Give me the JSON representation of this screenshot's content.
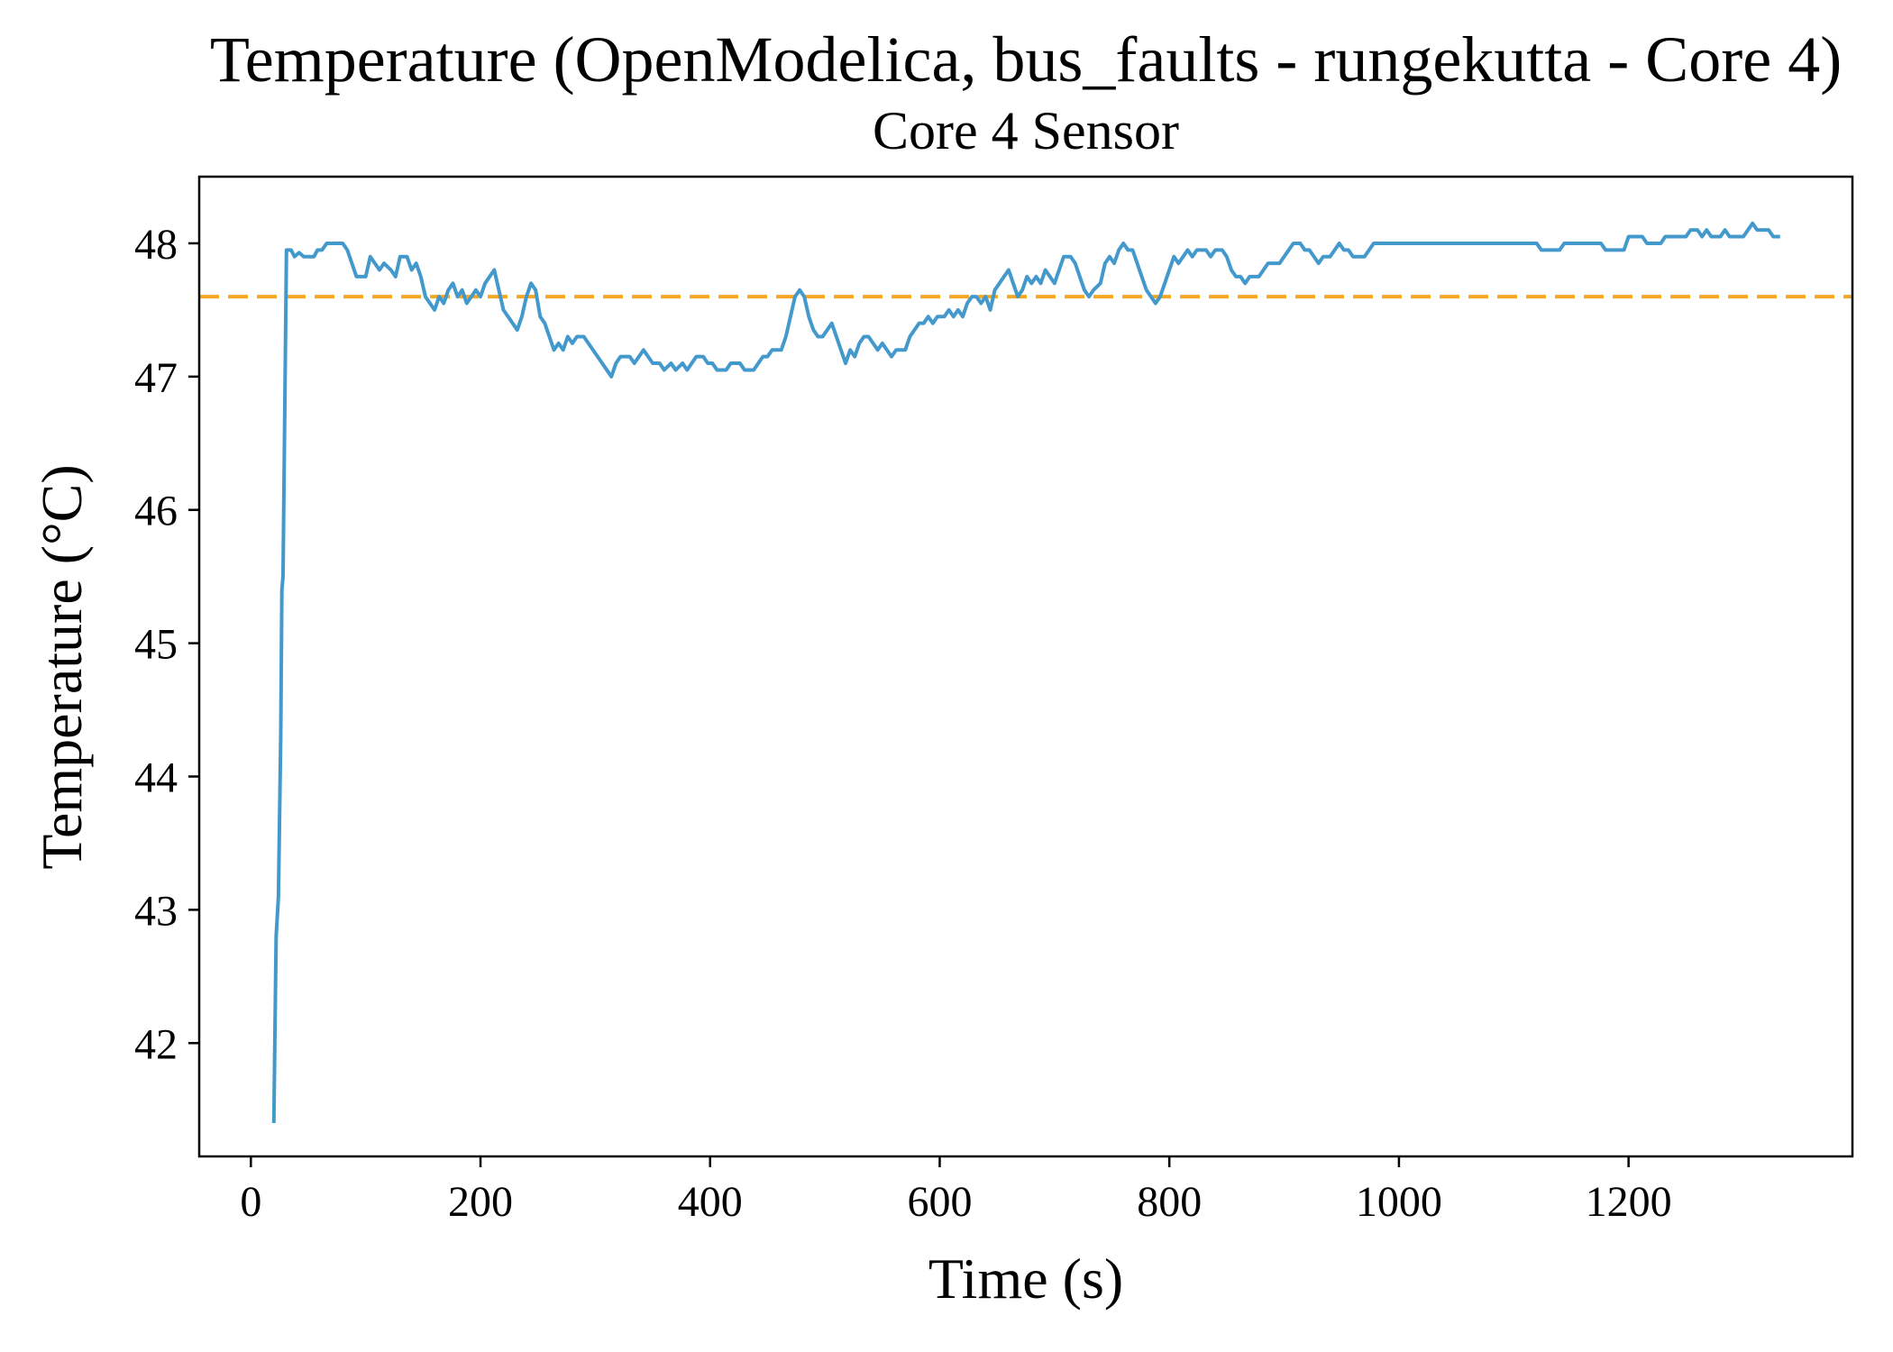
{
  "chart_data": {
    "type": "line",
    "title": "Temperature (OpenModelica, bus_faults - rungekutta - Core 4)",
    "subtitle": "Core 4 Sensor",
    "xlabel": "Time (s)",
    "ylabel": "Temperature (°C)",
    "xlim": [
      -45,
      1395
    ],
    "ylim": [
      41.15,
      48.5
    ],
    "x_ticks": [
      0,
      200,
      400,
      600,
      800,
      1000,
      1200
    ],
    "y_ticks": [
      42,
      43,
      44,
      45,
      46,
      47,
      48
    ],
    "x_tick_labels": [
      "0",
      "200",
      "400",
      "600",
      "800",
      "1000",
      "1200"
    ],
    "y_tick_labels": [
      "42",
      "43",
      "44",
      "45",
      "46",
      "47",
      "48"
    ],
    "grid": false,
    "series": [
      {
        "color": "#4499cc",
        "style": "solid",
        "points": [
          [
            20,
            41.4
          ],
          [
            22,
            42.8
          ],
          [
            24,
            43.1
          ],
          [
            26,
            44.3
          ],
          [
            27,
            45.4
          ],
          [
            28,
            45.5
          ],
          [
            31,
            47.95
          ],
          [
            35,
            47.95
          ],
          [
            38,
            47.9
          ],
          [
            42,
            47.93
          ],
          [
            46,
            47.9
          ],
          [
            55,
            47.9
          ],
          [
            58,
            47.95
          ],
          [
            62,
            47.95
          ],
          [
            66,
            48.0
          ],
          [
            80,
            48.0
          ],
          [
            84,
            47.95
          ],
          [
            88,
            47.85
          ],
          [
            92,
            47.75
          ],
          [
            100,
            47.75
          ],
          [
            104,
            47.9
          ],
          [
            108,
            47.85
          ],
          [
            112,
            47.8
          ],
          [
            116,
            47.85
          ],
          [
            122,
            47.8
          ],
          [
            126,
            47.75
          ],
          [
            130,
            47.9
          ],
          [
            136,
            47.9
          ],
          [
            140,
            47.8
          ],
          [
            144,
            47.85
          ],
          [
            148,
            47.75
          ],
          [
            152,
            47.6
          ],
          [
            156,
            47.55
          ],
          [
            160,
            47.5
          ],
          [
            164,
            47.6
          ],
          [
            168,
            47.55
          ],
          [
            172,
            47.65
          ],
          [
            176,
            47.7
          ],
          [
            180,
            47.6
          ],
          [
            184,
            47.65
          ],
          [
            188,
            47.55
          ],
          [
            192,
            47.6
          ],
          [
            196,
            47.65
          ],
          [
            200,
            47.6
          ],
          [
            204,
            47.7
          ],
          [
            208,
            47.75
          ],
          [
            212,
            47.8
          ],
          [
            216,
            47.65
          ],
          [
            220,
            47.5
          ],
          [
            224,
            47.45
          ],
          [
            228,
            47.4
          ],
          [
            232,
            47.35
          ],
          [
            236,
            47.45
          ],
          [
            240,
            47.6
          ],
          [
            244,
            47.7
          ],
          [
            248,
            47.65
          ],
          [
            252,
            47.45
          ],
          [
            256,
            47.4
          ],
          [
            260,
            47.3
          ],
          [
            264,
            47.2
          ],
          [
            268,
            47.25
          ],
          [
            272,
            47.2
          ],
          [
            276,
            47.3
          ],
          [
            280,
            47.25
          ],
          [
            284,
            47.3
          ],
          [
            290,
            47.3
          ],
          [
            294,
            47.25
          ],
          [
            298,
            47.2
          ],
          [
            302,
            47.15
          ],
          [
            306,
            47.1
          ],
          [
            310,
            47.05
          ],
          [
            314,
            47.0
          ],
          [
            318,
            47.1
          ],
          [
            322,
            47.15
          ],
          [
            330,
            47.15
          ],
          [
            334,
            47.1
          ],
          [
            338,
            47.15
          ],
          [
            342,
            47.2
          ],
          [
            346,
            47.15
          ],
          [
            350,
            47.1
          ],
          [
            356,
            47.1
          ],
          [
            360,
            47.05
          ],
          [
            366,
            47.1
          ],
          [
            370,
            47.05
          ],
          [
            376,
            47.1
          ],
          [
            380,
            47.05
          ],
          [
            384,
            47.1
          ],
          [
            388,
            47.15
          ],
          [
            394,
            47.15
          ],
          [
            398,
            47.1
          ],
          [
            402,
            47.1
          ],
          [
            406,
            47.05
          ],
          [
            414,
            47.05
          ],
          [
            418,
            47.1
          ],
          [
            426,
            47.1
          ],
          [
            430,
            47.05
          ],
          [
            438,
            47.05
          ],
          [
            442,
            47.1
          ],
          [
            446,
            47.15
          ],
          [
            450,
            47.15
          ],
          [
            454,
            47.2
          ],
          [
            462,
            47.2
          ],
          [
            466,
            47.3
          ],
          [
            470,
            47.45
          ],
          [
            474,
            47.6
          ],
          [
            478,
            47.65
          ],
          [
            482,
            47.6
          ],
          [
            486,
            47.45
          ],
          [
            490,
            47.35
          ],
          [
            494,
            47.3
          ],
          [
            498,
            47.3
          ],
          [
            502,
            47.35
          ],
          [
            506,
            47.4
          ],
          [
            510,
            47.3
          ],
          [
            514,
            47.2
          ],
          [
            518,
            47.1
          ],
          [
            522,
            47.2
          ],
          [
            526,
            47.15
          ],
          [
            530,
            47.25
          ],
          [
            534,
            47.3
          ],
          [
            538,
            47.3
          ],
          [
            542,
            47.25
          ],
          [
            546,
            47.2
          ],
          [
            550,
            47.25
          ],
          [
            554,
            47.2
          ],
          [
            558,
            47.15
          ],
          [
            562,
            47.2
          ],
          [
            570,
            47.2
          ],
          [
            574,
            47.3
          ],
          [
            578,
            47.35
          ],
          [
            582,
            47.4
          ],
          [
            586,
            47.4
          ],
          [
            590,
            47.45
          ],
          [
            594,
            47.4
          ],
          [
            598,
            47.45
          ],
          [
            604,
            47.45
          ],
          [
            608,
            47.5
          ],
          [
            612,
            47.45
          ],
          [
            616,
            47.5
          ],
          [
            620,
            47.45
          ],
          [
            624,
            47.55
          ],
          [
            628,
            47.6
          ],
          [
            632,
            47.6
          ],
          [
            636,
            47.55
          ],
          [
            640,
            47.6
          ],
          [
            644,
            47.5
          ],
          [
            648,
            47.65
          ],
          [
            652,
            47.7
          ],
          [
            656,
            47.75
          ],
          [
            660,
            47.8
          ],
          [
            664,
            47.7
          ],
          [
            668,
            47.6
          ],
          [
            672,
            47.65
          ],
          [
            676,
            47.75
          ],
          [
            680,
            47.7
          ],
          [
            684,
            47.75
          ],
          [
            688,
            47.7
          ],
          [
            692,
            47.8
          ],
          [
            696,
            47.75
          ],
          [
            700,
            47.7
          ],
          [
            704,
            47.8
          ],
          [
            708,
            47.9
          ],
          [
            714,
            47.9
          ],
          [
            718,
            47.85
          ],
          [
            722,
            47.75
          ],
          [
            726,
            47.65
          ],
          [
            730,
            47.6
          ],
          [
            734,
            47.65
          ],
          [
            740,
            47.7
          ],
          [
            744,
            47.85
          ],
          [
            748,
            47.9
          ],
          [
            752,
            47.85
          ],
          [
            756,
            47.95
          ],
          [
            760,
            48.0
          ],
          [
            764,
            47.95
          ],
          [
            768,
            47.95
          ],
          [
            772,
            47.85
          ],
          [
            776,
            47.75
          ],
          [
            780,
            47.65
          ],
          [
            784,
            47.6
          ],
          [
            788,
            47.55
          ],
          [
            792,
            47.6
          ],
          [
            796,
            47.7
          ],
          [
            800,
            47.8
          ],
          [
            804,
            47.9
          ],
          [
            808,
            47.85
          ],
          [
            812,
            47.9
          ],
          [
            816,
            47.95
          ],
          [
            820,
            47.9
          ],
          [
            824,
            47.95
          ],
          [
            832,
            47.95
          ],
          [
            836,
            47.9
          ],
          [
            840,
            47.95
          ],
          [
            846,
            47.95
          ],
          [
            850,
            47.9
          ],
          [
            854,
            47.8
          ],
          [
            858,
            47.75
          ],
          [
            862,
            47.75
          ],
          [
            866,
            47.7
          ],
          [
            870,
            47.75
          ],
          [
            878,
            47.75
          ],
          [
            882,
            47.8
          ],
          [
            886,
            47.85
          ],
          [
            896,
            47.85
          ],
          [
            900,
            47.9
          ],
          [
            904,
            47.95
          ],
          [
            908,
            48.0
          ],
          [
            914,
            48.0
          ],
          [
            918,
            47.95
          ],
          [
            922,
            47.95
          ],
          [
            926,
            47.9
          ],
          [
            930,
            47.85
          ],
          [
            934,
            47.9
          ],
          [
            940,
            47.9
          ],
          [
            944,
            47.95
          ],
          [
            948,
            48.0
          ],
          [
            952,
            47.95
          ],
          [
            956,
            47.95
          ],
          [
            960,
            47.9
          ],
          [
            970,
            47.9
          ],
          [
            974,
            47.95
          ],
          [
            978,
            48.0
          ],
          [
            1120,
            48.0
          ],
          [
            1124,
            47.95
          ],
          [
            1140,
            47.95
          ],
          [
            1144,
            48.0
          ],
          [
            1176,
            48.0
          ],
          [
            1180,
            47.95
          ],
          [
            1196,
            47.95
          ],
          [
            1200,
            48.05
          ],
          [
            1212,
            48.05
          ],
          [
            1216,
            48.0
          ],
          [
            1228,
            48.0
          ],
          [
            1232,
            48.05
          ],
          [
            1250,
            48.05
          ],
          [
            1254,
            48.1
          ],
          [
            1260,
            48.1
          ],
          [
            1264,
            48.05
          ],
          [
            1268,
            48.1
          ],
          [
            1272,
            48.05
          ],
          [
            1280,
            48.05
          ],
          [
            1284,
            48.1
          ],
          [
            1288,
            48.05
          ],
          [
            1300,
            48.05
          ],
          [
            1304,
            48.1
          ],
          [
            1308,
            48.15
          ],
          [
            1312,
            48.1
          ],
          [
            1322,
            48.1
          ],
          [
            1326,
            48.05
          ],
          [
            1332,
            48.05
          ]
        ]
      }
    ],
    "reference_lines": [
      {
        "y": 47.6,
        "color": "#f5a623",
        "style": "dashed"
      }
    ]
  }
}
